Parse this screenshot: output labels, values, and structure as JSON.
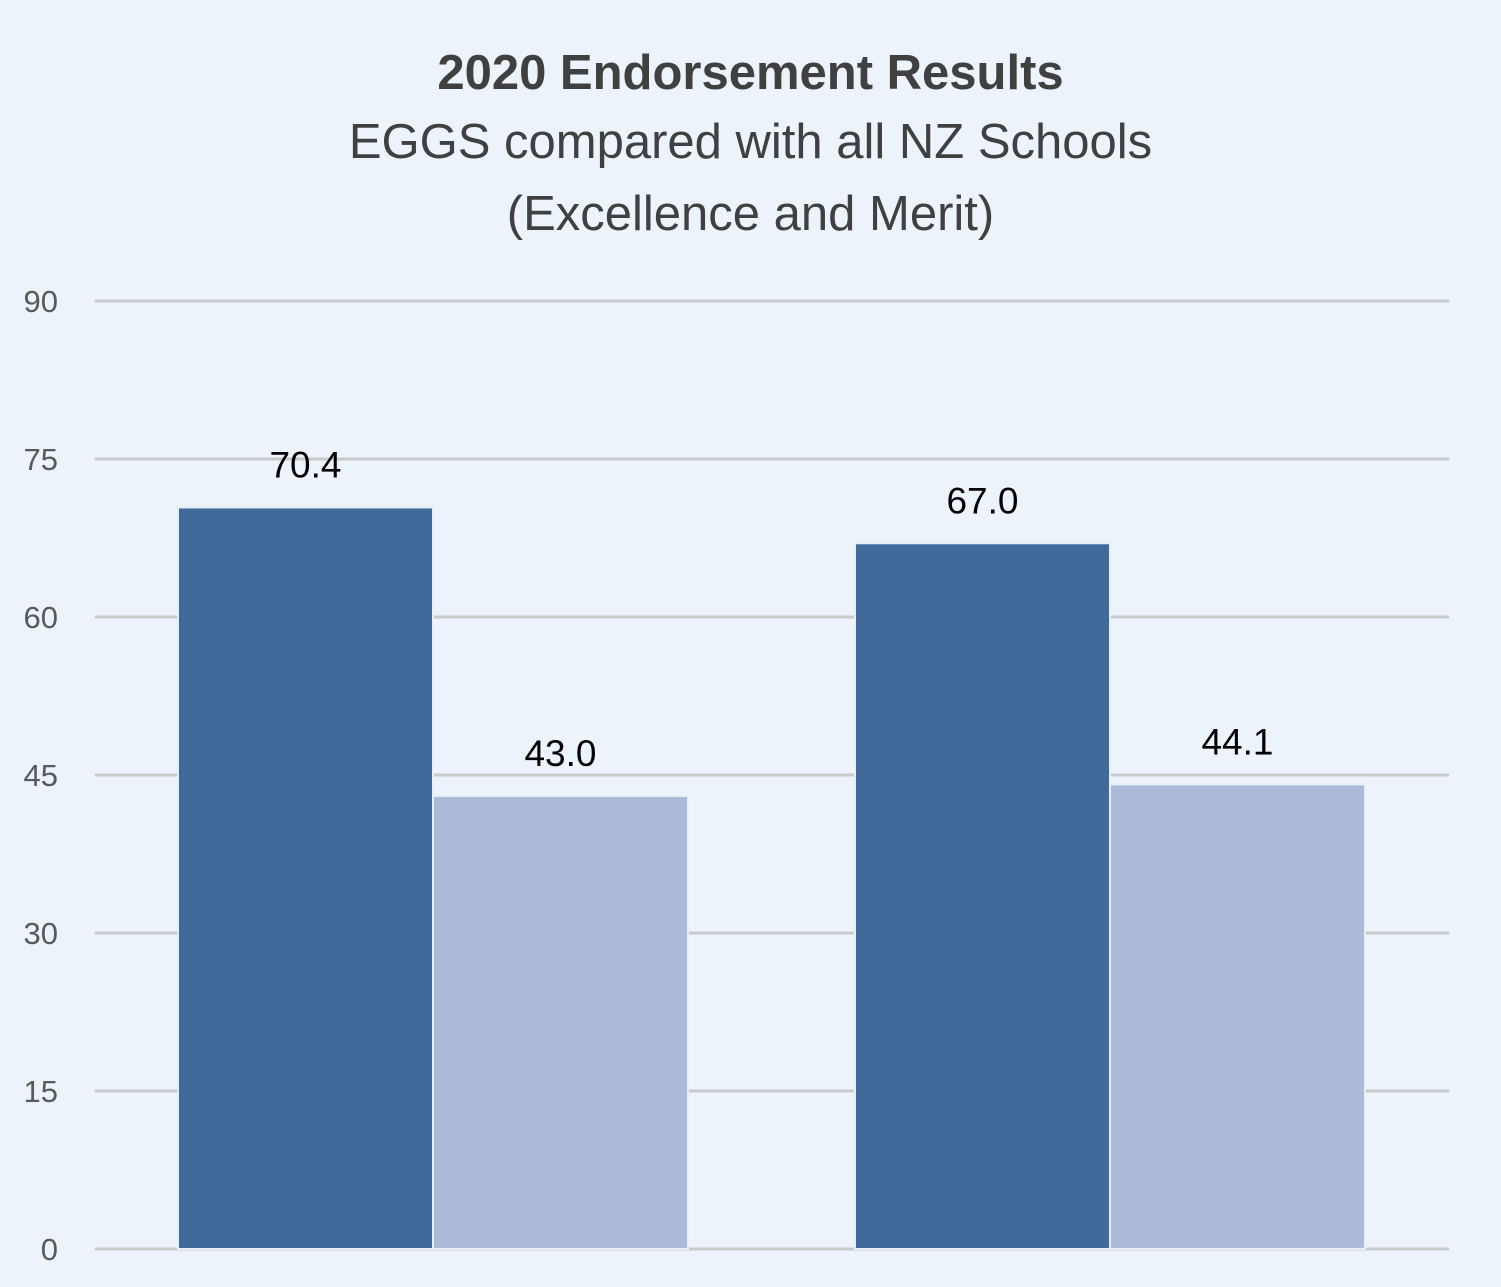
{
  "chart_data": {
    "type": "bar",
    "title": "2020 Endorsement Results",
    "subtitle_lines": [
      "EGGS compared with all NZ Schools",
      "(Excellence and Merit)"
    ],
    "categories": [
      "",
      ""
    ],
    "series": [
      {
        "values": [
          70.4,
          67.0
        ],
        "color": "#416a9b",
        "data_labels": [
          "70.4",
          "67.0"
        ]
      },
      {
        "values": [
          43.0,
          44.1
        ],
        "color": "#abbad6",
        "data_labels": [
          "43.0",
          "44.1"
        ]
      }
    ],
    "ylim": [
      0,
      90
    ],
    "yticks": [
      0,
      15,
      30,
      45,
      60,
      75,
      90
    ],
    "ytick_labels": [
      "0",
      "15",
      "30",
      "45",
      "60",
      "75",
      "90"
    ],
    "grid": true,
    "legend": "none",
    "xlabel": "",
    "ylabel": ""
  }
}
